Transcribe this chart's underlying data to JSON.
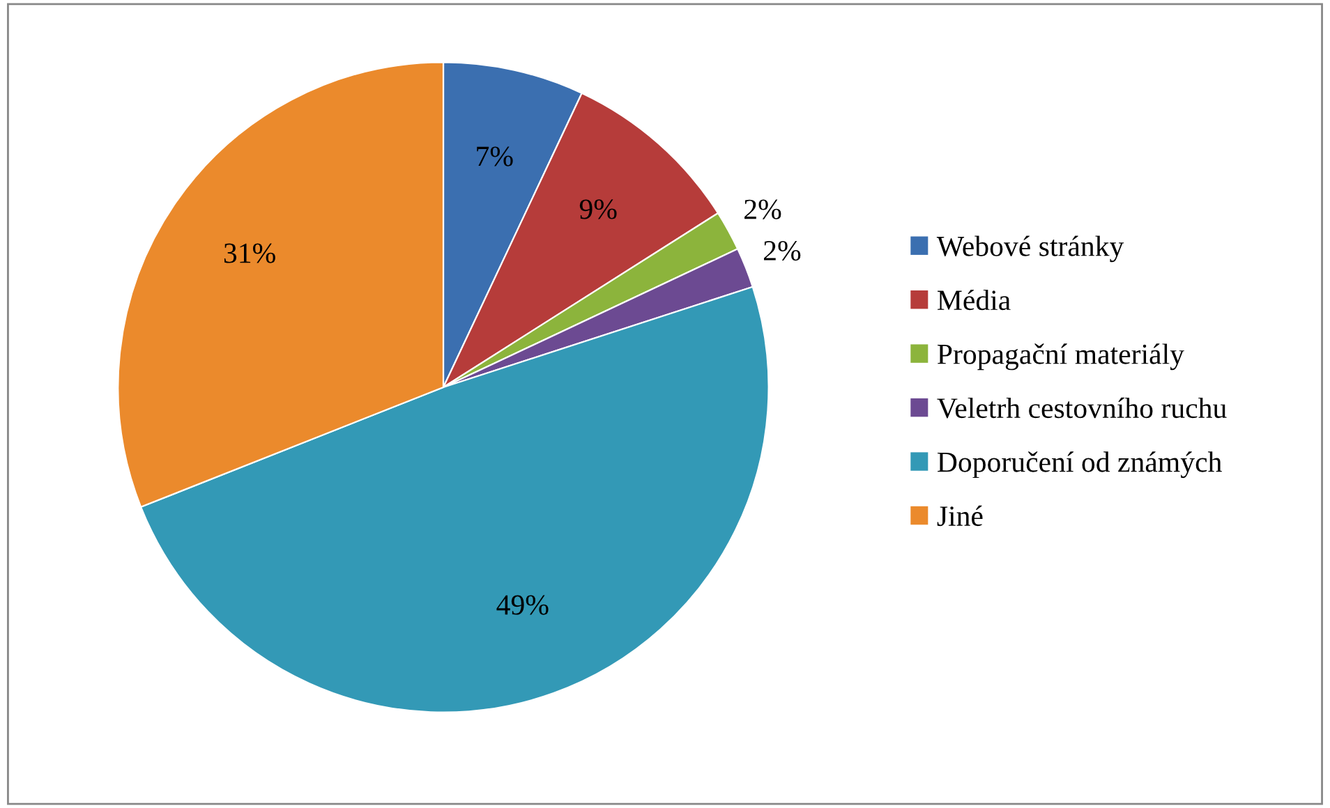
{
  "chart_data": {
    "type": "pie",
    "categories": [
      "Webové stránky",
      "Média",
      "Propagační materiály",
      "Veletrh cestovního ruchu",
      "Doporučení od známých",
      "Jiné"
    ],
    "values": [
      7,
      9,
      2,
      2,
      49,
      31
    ],
    "colors": [
      "#3b6fb0",
      "#b63c3a",
      "#8cb43c",
      "#6c4a92",
      "#3399b6",
      "#eb8a2c"
    ],
    "value_labels": [
      "7%",
      "9%",
      "2%",
      "2%",
      "49%",
      "31%"
    ],
    "legend": "right"
  }
}
